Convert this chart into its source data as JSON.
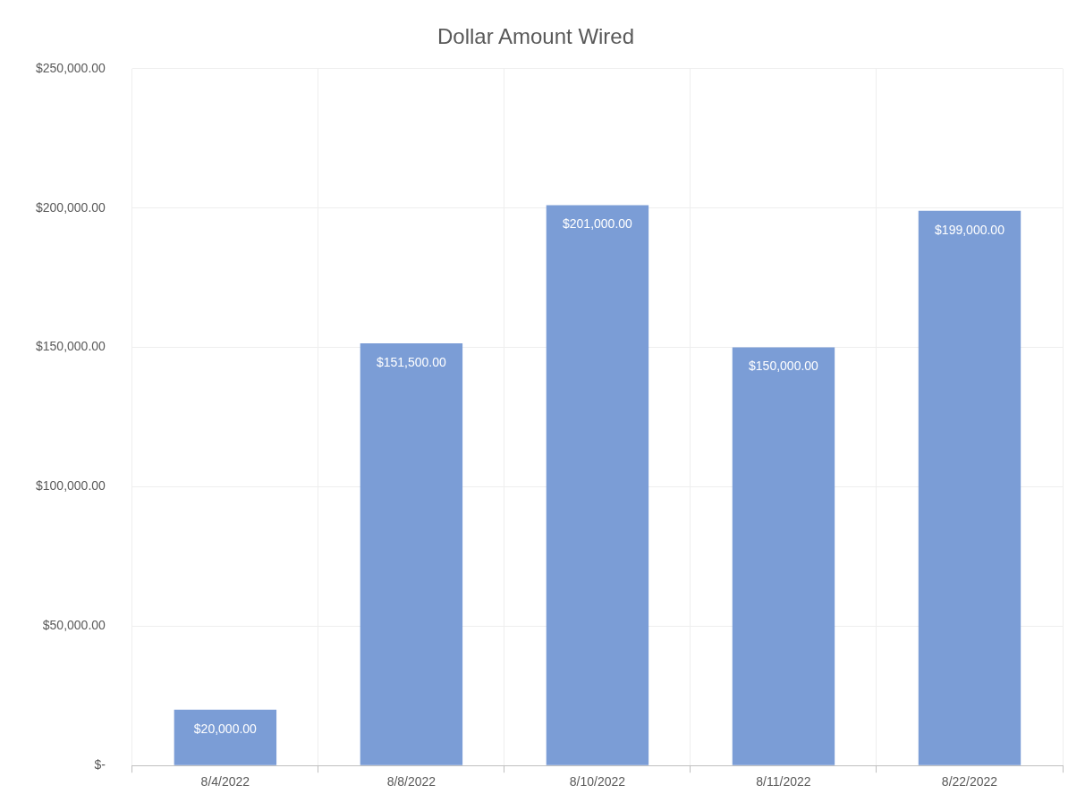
{
  "chart_data": {
    "type": "bar",
    "title": "Dollar Amount Wired",
    "categories": [
      "8/4/2022",
      "8/8/2022",
      "8/10/2022",
      "8/11/2022",
      "8/22/2022"
    ],
    "values": [
      20000,
      151500,
      201000,
      150000,
      199000
    ],
    "value_labels": [
      "$20,000.00",
      "$151,500.00",
      "$201,000.00",
      "$150,000.00",
      "$199,000.00"
    ],
    "color": "#7b9dd6",
    "ylim": [
      0,
      250000
    ],
    "yticks": [
      {
        "value": 0,
        "label": "$-"
      },
      {
        "value": 50000,
        "label": "$50,000.00"
      },
      {
        "value": 100000,
        "label": "$100,000.00"
      },
      {
        "value": 150000,
        "label": "$150,000.00"
      },
      {
        "value": 200000,
        "label": "$200,000.00"
      },
      {
        "value": 250000,
        "label": "$250,000.00"
      }
    ],
    "grid": true
  }
}
